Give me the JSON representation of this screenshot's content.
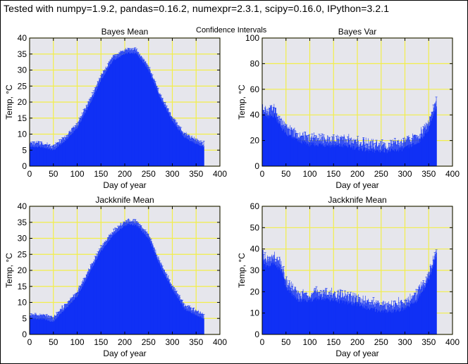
{
  "header": "Tested with numpy=1.9.2, pandas=0.16.2, numexpr=2.3.1, scipy=0.16.0, IPython=3.2.1",
  "suptitle": "Confidence Intervals",
  "colors": {
    "series": "#1030f5",
    "grid": "#f2ee4a",
    "background": "#e6e6ec",
    "error_bars": "#1030f5"
  },
  "chart_data": [
    {
      "type": "bar",
      "title": "Bayes Mean",
      "xlabel": "Day of year",
      "ylabel": "Temp, °C",
      "xlim": [
        0,
        400
      ],
      "ylim": [
        0,
        40
      ],
      "xticks": [
        "0",
        "50",
        "100",
        "150",
        "200",
        "250",
        "300",
        "350",
        "400"
      ],
      "yticks": [
        "0",
        "5",
        "10",
        "15",
        "20",
        "25",
        "30",
        "35",
        "40"
      ],
      "grid": true,
      "error_bars": true,
      "x": [
        0,
        25,
        50,
        75,
        100,
        125,
        150,
        175,
        200,
        210,
        225,
        250,
        275,
        300,
        325,
        350,
        366
      ],
      "series": [
        {
          "values": [
            6,
            6,
            5,
            8,
            12,
            19,
            27,
            33,
            35,
            35.5,
            35,
            30,
            21,
            14,
            9,
            7,
            6
          ]
        }
      ]
    },
    {
      "type": "bar",
      "title": "Bayes Var",
      "xlabel": "Day of year",
      "ylabel": "Temp, °C",
      "xlim": [
        0,
        400
      ],
      "ylim": [
        0,
        100
      ],
      "xticks": [
        "0",
        "50",
        "100",
        "150",
        "200",
        "250",
        "300",
        "350",
        "400"
      ],
      "yticks": [
        "0",
        "20",
        "40",
        "60",
        "80",
        "100"
      ],
      "grid": true,
      "error_bars": true,
      "x": [
        0,
        10,
        25,
        40,
        50,
        75,
        100,
        125,
        150,
        175,
        200,
        225,
        250,
        275,
        300,
        325,
        340,
        350,
        360,
        366
      ],
      "series": [
        {
          "values": [
            42,
            38,
            40,
            30,
            25,
            20,
            17,
            17,
            16,
            16,
            14,
            12,
            12,
            12,
            14,
            18,
            24,
            30,
            40,
            45
          ]
        }
      ]
    },
    {
      "type": "bar",
      "title": "Jackknife Mean",
      "xlabel": "Day of year",
      "ylabel": "Temp, °C",
      "xlim": [
        0,
        400
      ],
      "ylim": [
        0,
        40
      ],
      "xticks": [
        "0",
        "50",
        "100",
        "150",
        "200",
        "250",
        "300",
        "350",
        "400"
      ],
      "yticks": [
        "0",
        "5",
        "10",
        "15",
        "20",
        "25",
        "30",
        "35",
        "40"
      ],
      "grid": true,
      "error_bars": true,
      "x": [
        0,
        25,
        50,
        75,
        100,
        125,
        150,
        175,
        200,
        210,
        225,
        250,
        275,
        300,
        325,
        350,
        366
      ],
      "series": [
        {
          "values": [
            5,
            5,
            4,
            8,
            12,
            19,
            26,
            31,
            34,
            34.5,
            34,
            30,
            21,
            14,
            8,
            6,
            5
          ]
        }
      ]
    },
    {
      "type": "bar",
      "title": "Jackknife Mean",
      "xlabel": "Day of year",
      "ylabel": "Temp, °C",
      "xlim": [
        0,
        400
      ],
      "ylim": [
        0,
        60
      ],
      "xticks": [
        "0",
        "50",
        "100",
        "150",
        "200",
        "250",
        "300",
        "350",
        "400"
      ],
      "yticks": [
        "0",
        "10",
        "20",
        "30",
        "40",
        "50",
        "60"
      ],
      "grid": true,
      "error_bars": true,
      "x": [
        0,
        10,
        25,
        40,
        50,
        75,
        100,
        125,
        150,
        175,
        200,
        225,
        250,
        275,
        300,
        325,
        340,
        350,
        360,
        366
      ],
      "series": [
        {
          "values": [
            35,
            32,
            33,
            30,
            22,
            16,
            16,
            17,
            16,
            15,
            14,
            12,
            11,
            11,
            12,
            16,
            22,
            26,
            33,
            38
          ]
        }
      ]
    }
  ]
}
